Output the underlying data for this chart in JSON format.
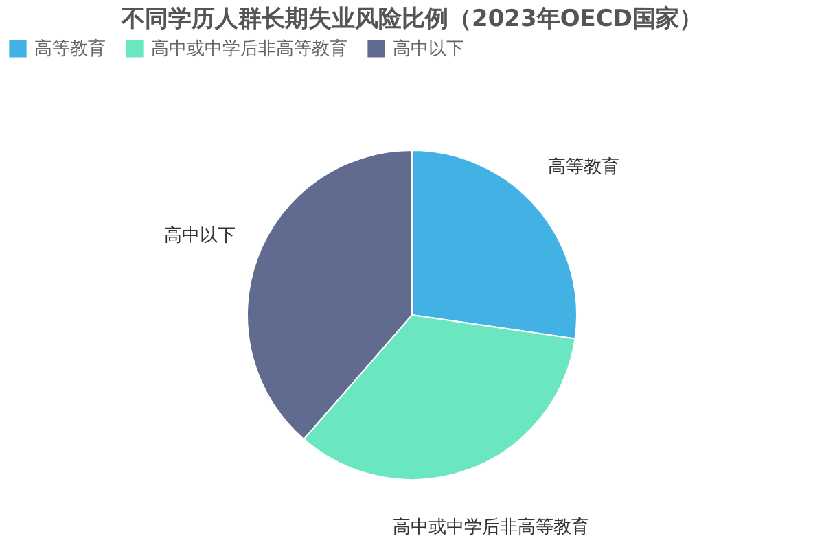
{
  "chart_data": {
    "type": "pie",
    "title": "不同学历人群长期失业风险比例（2023年OECD国家）",
    "categories": [
      "高等教育",
      "高中或中学后非高等教育",
      "高中以下"
    ],
    "values": [
      27.3,
      34.1,
      38.6
    ],
    "colors": [
      "#42b1e4",
      "#6ae6c1",
      "#616a8f"
    ],
    "legend": "top"
  }
}
